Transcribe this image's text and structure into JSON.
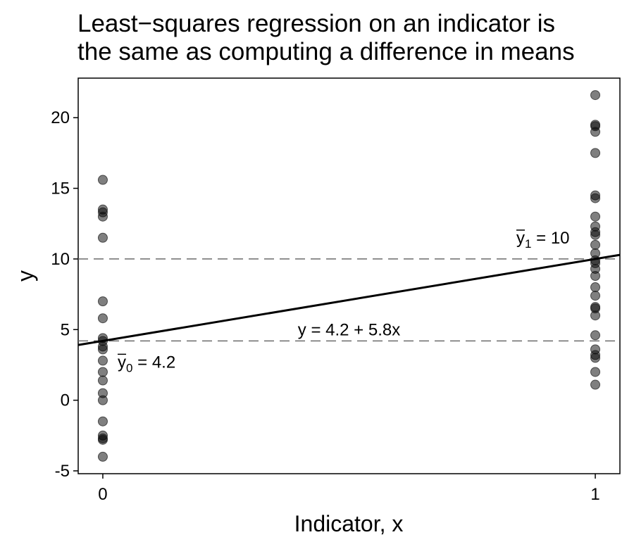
{
  "chart_data": {
    "type": "scatter",
    "title_lines": [
      "Least−squares regression on an indicator is",
      "the same as computing a difference in means"
    ],
    "xlabel": "Indicator, x",
    "ylabel": "y",
    "xlim": [
      -0.05,
      1.05
    ],
    "ylim": [
      -5.2,
      22.8
    ],
    "x_ticks": [
      0,
      1
    ],
    "y_ticks": [
      -5,
      0,
      5,
      10,
      15,
      20
    ],
    "grid": false,
    "series": [
      {
        "x": 0,
        "y": [
          15.6,
          13.5,
          13.3,
          13.0,
          11.5,
          7.0,
          5.8,
          4.4,
          4.2,
          3.8,
          3.6,
          2.8,
          2.0,
          1.4,
          0.5,
          0.0,
          -1.5,
          -2.5,
          -2.7,
          -2.8,
          -4.0
        ]
      },
      {
        "x": 1,
        "y": [
          21.6,
          19.5,
          19.4,
          19.0,
          17.5,
          14.5,
          14.3,
          13.0,
          12.3,
          11.9,
          11.7,
          11.0,
          10.4,
          9.9,
          9.7,
          9.3,
          8.8,
          8.0,
          7.4,
          6.6,
          6.5,
          6.0,
          4.6,
          3.6,
          3.2,
          3.0,
          2.0,
          1.1
        ]
      }
    ],
    "reference_lines": [
      {
        "y": 10,
        "label_main": "y",
        "label_sub": "1",
        "label_value": " = 10",
        "position": "right"
      },
      {
        "y": 4.2,
        "label_main": "y",
        "label_sub": "0",
        "label_value": " = 4.2",
        "position": "left"
      }
    ],
    "fit_line": {
      "intercept": 4.2,
      "slope": 5.8,
      "label": "y = 4.2 + 5.8x"
    }
  }
}
